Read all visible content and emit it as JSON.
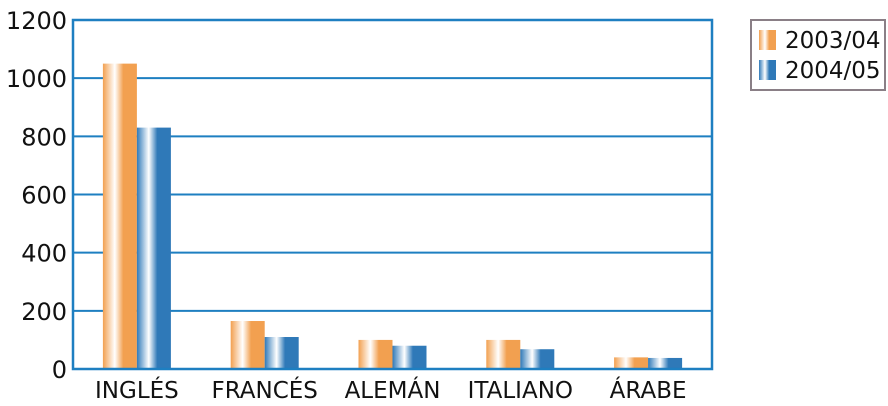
{
  "chart_data": {
    "type": "bar",
    "title": "",
    "xlabel": "",
    "ylabel": "",
    "categories": [
      "INGLÉS",
      "FRANCÉS",
      "ALEMÁN",
      "ITALIANO",
      "ÁRABE"
    ],
    "series": [
      {
        "name": "2003/04",
        "values": [
          1050,
          165,
          100,
          100,
          40
        ],
        "color": "#f2a050"
      },
      {
        "name": "2004/05",
        "values": [
          830,
          110,
          80,
          68,
          38
        ],
        "color": "#2f79b8"
      }
    ],
    "ylim": [
      0,
      1200
    ],
    "yticks": [
      "0",
      "200",
      "400",
      "600",
      "800",
      "1000",
      "1200"
    ],
    "grid": true,
    "legend_position": "top-right",
    "colors": {
      "axis_frame": "#1e7fc1",
      "gridline": "#1e7fc1",
      "legend_border": "#8a7f86"
    }
  }
}
